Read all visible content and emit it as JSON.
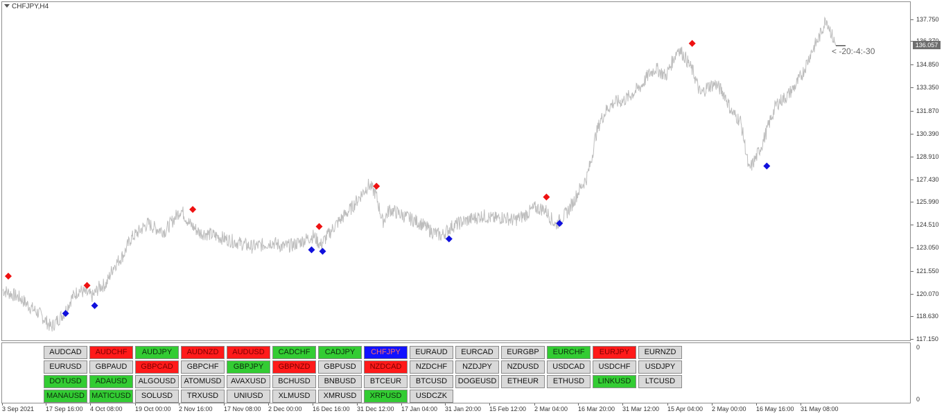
{
  "chart_title": "CHFJPY,H4",
  "current_price": "136.057",
  "countdown": "< -20:-4:-30",
  "subwindow_ticks": [
    "0",
    "0"
  ],
  "colors": {
    "up_signal": "#ee1111",
    "down_signal": "#1010dd",
    "line": "#bdbdbd",
    "btn_red": "#ff1a1a",
    "btn_green": "#33cc33",
    "btn_blue": "#1212ff",
    "btn_gray": "#d9d9d9"
  },
  "buttons": [
    [
      "AUDCAD",
      "gray"
    ],
    [
      "AUDCHF",
      "red"
    ],
    [
      "AUDJPY",
      "green"
    ],
    [
      "AUDNZD",
      "red"
    ],
    [
      "AUDUSD",
      "red"
    ],
    [
      "CADCHF",
      "green"
    ],
    [
      "CADJPY",
      "green"
    ],
    [
      "CHFJPY",
      "blue"
    ],
    [
      "EURAUD",
      "gray"
    ],
    [
      "EURCAD",
      "gray"
    ],
    [
      "EURGBP",
      "gray"
    ],
    [
      "EURCHF",
      "green"
    ],
    [
      "EURJPY",
      "red"
    ],
    [
      "EURNZD",
      "gray"
    ],
    [
      "EURUSD",
      "gray"
    ],
    [
      "GBPAUD",
      "gray"
    ],
    [
      "GBPCAD",
      "red"
    ],
    [
      "GBPCHF",
      "gray"
    ],
    [
      "GBPJPY",
      "green"
    ],
    [
      "GBPNZD",
      "red"
    ],
    [
      "GBPUSD",
      "gray"
    ],
    [
      "NZDCAD",
      "red"
    ],
    [
      "NZDCHF",
      "gray"
    ],
    [
      "NZDJPY",
      "gray"
    ],
    [
      "NZDUSD",
      "gray"
    ],
    [
      "USDCAD",
      "gray"
    ],
    [
      "USDCHF",
      "gray"
    ],
    [
      "USDJPY",
      "gray"
    ],
    [
      "DOTUSD",
      "green"
    ],
    [
      "ADAUSD",
      "green"
    ],
    [
      "ALGOUSD",
      "gray"
    ],
    [
      "ATOMUSD",
      "gray"
    ],
    [
      "AVAXUSD",
      "gray"
    ],
    [
      "BCHUSD",
      "gray"
    ],
    [
      "BNBUSD",
      "gray"
    ],
    [
      "BTCEUR",
      "gray"
    ],
    [
      "BTCUSD",
      "gray"
    ],
    [
      "DOGEUSD",
      "gray"
    ],
    [
      "ETHEUR",
      "gray"
    ],
    [
      "ETHUSD",
      "gray"
    ],
    [
      "LINKUSD",
      "green"
    ],
    [
      "LTCUSD",
      "gray"
    ],
    [
      "MANAUSD",
      "green"
    ],
    [
      "MATICUSD",
      "green"
    ],
    [
      "SOLUSD",
      "gray"
    ],
    [
      "TRXUSD",
      "gray"
    ],
    [
      "UNIUSD",
      "gray"
    ],
    [
      "XLMUSD",
      "gray"
    ],
    [
      "XMRUSD",
      "gray"
    ],
    [
      "XRPUSD",
      "green"
    ],
    [
      "USDCZK",
      "gray"
    ]
  ],
  "chart_data": {
    "type": "line",
    "title": "CHFJPY,H4",
    "y_ticks": [
      "137.750",
      "136.370",
      "134.850",
      "133.350",
      "131.870",
      "130.390",
      "128.910",
      "127.430",
      "125.990",
      "124.510",
      "123.050",
      "121.550",
      "120.070",
      "118.630",
      "117.150"
    ],
    "x_ticks": [
      "3 Sep 2021",
      "17 Sep 16:00",
      "4 Oct 08:00",
      "19 Oct 00:00",
      "2 Nov 16:00",
      "17 Nov 08:00",
      "2 Dec 00:00",
      "16 Dec 16:00",
      "31 Dec 12:00",
      "17 Jan 04:00",
      "31 Jan 20:00",
      "15 Feb 12:00",
      "2 Mar 04:00",
      "16 Mar 20:00",
      "31 Mar 12:00",
      "15 Apr 04:00",
      "2 May 00:00",
      "16 May 16:00",
      "31 May 08:00"
    ],
    "ylim": [
      117.0,
      138.3
    ],
    "bar_index_range": [
      0,
      1200
    ],
    "series": [
      {
        "values": [
          [
            0,
            120.3
          ],
          [
            10,
            120.1
          ],
          [
            25,
            119.8
          ],
          [
            40,
            119.2
          ],
          [
            55,
            118.7
          ],
          [
            70,
            117.9
          ],
          [
            80,
            118.4
          ],
          [
            90,
            118.9
          ],
          [
            100,
            119.8
          ],
          [
            110,
            120.3
          ],
          [
            120,
            120.1
          ],
          [
            130,
            119.9
          ],
          [
            140,
            120.5
          ],
          [
            150,
            120.7
          ],
          [
            160,
            121.8
          ],
          [
            175,
            122.6
          ],
          [
            185,
            123.6
          ],
          [
            200,
            124.2
          ],
          [
            210,
            124.6
          ],
          [
            220,
            124.3
          ],
          [
            235,
            124.1
          ],
          [
            248,
            124.9
          ],
          [
            258,
            125.5
          ],
          [
            270,
            124.6
          ],
          [
            285,
            124.0
          ],
          [
            300,
            123.9
          ],
          [
            315,
            123.7
          ],
          [
            330,
            123.5
          ],
          [
            345,
            123.3
          ],
          [
            360,
            123.1
          ],
          [
            375,
            123.2
          ],
          [
            390,
            123.4
          ],
          [
            405,
            123.1
          ],
          [
            420,
            123.2
          ],
          [
            435,
            123.5
          ],
          [
            450,
            123.8
          ],
          [
            460,
            123.2
          ],
          [
            470,
            123.8
          ],
          [
            480,
            124.4
          ],
          [
            490,
            124.9
          ],
          [
            505,
            125.6
          ],
          [
            518,
            126.4
          ],
          [
            530,
            127.1
          ],
          [
            540,
            126.5
          ],
          [
            550,
            124.7
          ],
          [
            560,
            125.5
          ],
          [
            575,
            125.2
          ],
          [
            590,
            124.9
          ],
          [
            605,
            124.6
          ],
          [
            620,
            124.1
          ],
          [
            635,
            123.8
          ],
          [
            650,
            124.4
          ],
          [
            665,
            124.7
          ],
          [
            680,
            124.9
          ],
          [
            695,
            125.1
          ],
          [
            710,
            124.9
          ],
          [
            725,
            125.0
          ],
          [
            740,
            124.8
          ],
          [
            755,
            125.1
          ],
          [
            770,
            125.6
          ],
          [
            785,
            125.5
          ],
          [
            800,
            124.5
          ],
          [
            815,
            125.2
          ],
          [
            825,
            125.9
          ],
          [
            835,
            126.8
          ],
          [
            845,
            127.5
          ],
          [
            852,
            128.7
          ],
          [
            858,
            130.2
          ],
          [
            865,
            131.2
          ],
          [
            875,
            132.0
          ],
          [
            885,
            132.4
          ],
          [
            898,
            132.5
          ],
          [
            910,
            132.9
          ],
          [
            925,
            133.5
          ],
          [
            935,
            134.2
          ],
          [
            945,
            134.6
          ],
          [
            960,
            134.1
          ],
          [
            970,
            135.1
          ],
          [
            978,
            135.9
          ],
          [
            988,
            135.3
          ],
          [
            1000,
            134.3
          ],
          [
            1010,
            132.9
          ],
          [
            1020,
            133.4
          ],
          [
            1032,
            133.6
          ],
          [
            1045,
            132.9
          ],
          [
            1055,
            131.8
          ],
          [
            1068,
            131.2
          ],
          [
            1075,
            129.5
          ],
          [
            1080,
            128.0
          ],
          [
            1090,
            128.8
          ],
          [
            1100,
            129.8
          ],
          [
            1110,
            131.1
          ],
          [
            1120,
            132.3
          ],
          [
            1135,
            132.8
          ],
          [
            1148,
            133.5
          ],
          [
            1158,
            134.3
          ],
          [
            1170,
            135.6
          ],
          [
            1182,
            136.6
          ],
          [
            1192,
            137.8
          ],
          [
            1197,
            137.2
          ],
          [
            1202,
            136.5
          ],
          [
            1206,
            136.06
          ]
        ]
      }
    ],
    "signals_up": [
      [
        8,
        121.2
      ],
      [
        122,
        120.6
      ],
      [
        275,
        125.5
      ],
      [
        458,
        124.4
      ],
      [
        541,
        127.0
      ],
      [
        787,
        126.3
      ],
      [
        998,
        136.2
      ]
    ],
    "signals_down": [
      [
        91,
        118.8
      ],
      [
        133,
        119.3
      ],
      [
        447,
        122.9
      ],
      [
        463,
        122.8
      ],
      [
        646,
        123.6
      ],
      [
        806,
        124.6
      ],
      [
        1106,
        128.3
      ]
    ]
  }
}
